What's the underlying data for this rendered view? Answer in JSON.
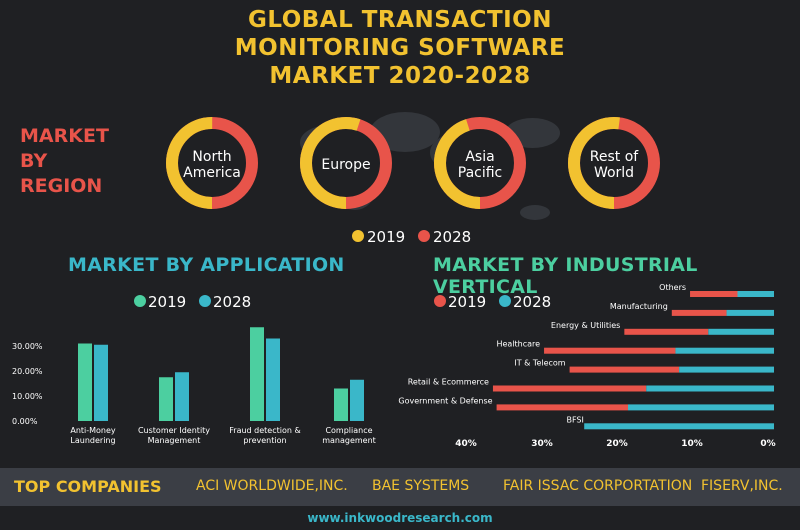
{
  "title": {
    "line1": "GLOBAL TRANSACTION",
    "line2": "MONITORING SOFTWARE",
    "line3": "MARKET 2020-2028"
  },
  "region": {
    "label_lines": [
      "MARKET",
      "BY",
      "REGION"
    ],
    "legend": [
      "2019",
      "2028"
    ],
    "colors": {
      "2019": "#f2c230",
      "2028": "#e8544a"
    },
    "items": [
      {
        "label": [
          "North",
          "America"
        ],
        "share_2019": 0.5
      },
      {
        "label": [
          "Europe"
        ],
        "share_2019": 0.55
      },
      {
        "label": [
          "Asia",
          "Pacific"
        ],
        "share_2019": 0.45
      },
      {
        "label": [
          "Rest of",
          "World"
        ],
        "share_2019": 0.52
      }
    ]
  },
  "application": {
    "heading": "MARKET BY APPLICATION",
    "legend": [
      "2019",
      "2028"
    ]
  },
  "industrial": {
    "heading": "MARKET BY INDUSTRIAL VERTICAL",
    "legend": [
      "2019",
      "2028"
    ]
  },
  "chart_data": [
    {
      "type": "bar",
      "title": "MARKET BY APPLICATION",
      "categories": [
        [
          "Anti-Money",
          "Laundering"
        ],
        [
          "Customer Identity",
          "Management"
        ],
        [
          "Fraud detection &",
          "prevention"
        ],
        [
          "Compliance",
          "management"
        ]
      ],
      "series": [
        {
          "name": "2019",
          "color": "#4ccfa0",
          "values": [
            31,
            17.5,
            37.5,
            13
          ]
        },
        {
          "name": "2028",
          "color": "#3ab7c9",
          "values": [
            30.5,
            19.5,
            33,
            16.5
          ]
        }
      ],
      "yticks": [
        "0.00%",
        "10.00%",
        "20.00%",
        "30.00%"
      ],
      "ylim": [
        0,
        40
      ]
    },
    {
      "type": "bar",
      "orientation": "horizontal",
      "title": "MARKET BY INDUSTRIAL VERTICAL",
      "categories": [
        "Others",
        "Manufacturing",
        "Energy & Utilities",
        "Healthcare",
        "IT & Telecom",
        "Retail & Ecommerce",
        "Government & Defense",
        "BFSI"
      ],
      "series": [
        {
          "name": "2019",
          "color": "#e8544a",
          "values": [
            11.5,
            14,
            20.5,
            31.5,
            28,
            38.5,
            38,
            25.5
          ]
        },
        {
          "name": "2028",
          "color": "#3ab7c9",
          "values": [
            5,
            6.5,
            9,
            13.5,
            13,
            17.5,
            20,
            26
          ]
        }
      ],
      "xticks": [
        "40%",
        "30%",
        "20%",
        "10%",
        "0%"
      ],
      "xlim": [
        0,
        40
      ],
      "direction": "right-to-left"
    }
  ],
  "footer": {
    "title": "TOP COMPANIES",
    "companies": [
      "ACI WORLDWIDE,INC.",
      "BAE SYSTEMS",
      "FAIR ISSAC CORPORTATION",
      "FISERV,INC."
    ],
    "url": "www.inkwoodresearch.com"
  }
}
